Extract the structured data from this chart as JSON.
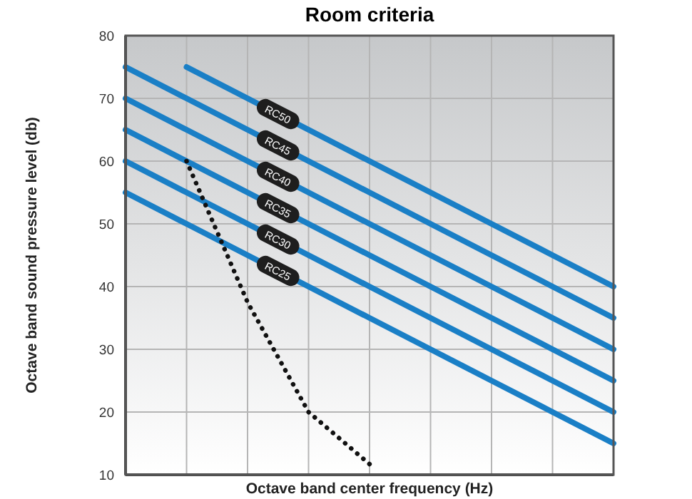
{
  "chart_data": {
    "type": "line",
    "title": "Room criteria",
    "xlabel": "Octave band center frequency (Hz)",
    "ylabel": "Octave band sound pressure level (db)",
    "categories": [
      null,
      null,
      null,
      null,
      null,
      null,
      null,
      null,
      null
    ],
    "ylim": [
      10,
      80
    ],
    "yticks": [
      10,
      20,
      30,
      40,
      50,
      60,
      70,
      80
    ],
    "grid": true,
    "marker": "none",
    "line_style": "solid",
    "series": [
      {
        "name": "RC50",
        "color": "#1a7fc6",
        "values": [
          null,
          75,
          70,
          65,
          60,
          55,
          50,
          45,
          40
        ]
      },
      {
        "name": "RC45",
        "color": "#1a7fc6",
        "values": [
          75,
          70,
          65,
          60,
          55,
          50,
          45,
          40,
          35
        ]
      },
      {
        "name": "RC40",
        "color": "#1a7fc6",
        "values": [
          70,
          65,
          60,
          55,
          50,
          45,
          40,
          35,
          30
        ]
      },
      {
        "name": "RC35",
        "color": "#1a7fc6",
        "values": [
          65,
          60,
          55,
          50,
          45,
          40,
          35,
          30,
          25
        ]
      },
      {
        "name": "RC30",
        "color": "#1a7fc6",
        "values": [
          60,
          55,
          50,
          45,
          40,
          35,
          30,
          25,
          20
        ]
      },
      {
        "name": "RC25",
        "color": "#1a7fc6",
        "values": [
          55,
          50,
          45,
          40,
          35,
          30,
          25,
          20,
          15
        ]
      },
      {
        "color": "#111111",
        "line_style": "dotted",
        "values": [
          null,
          60,
          37.5,
          20,
          11.7,
          null,
          null,
          null,
          null
        ]
      }
    ]
  }
}
